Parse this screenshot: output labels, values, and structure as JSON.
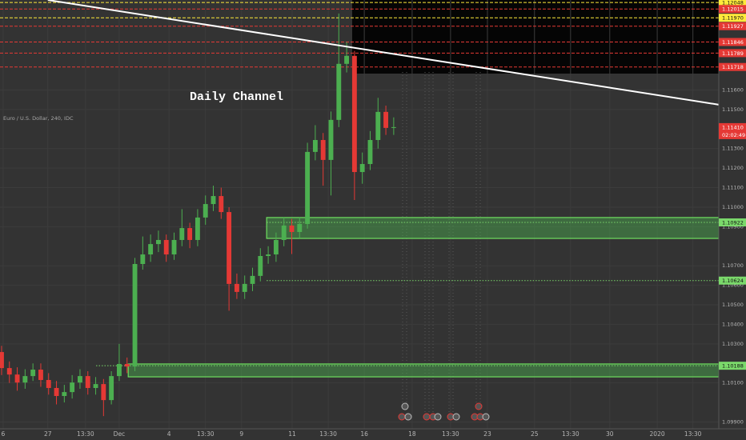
{
  "chart_data": {
    "type": "candlestick",
    "title": "Daily Channel",
    "subtitle": "Euro / U.S. Dollar, 240, IDC",
    "colors": {
      "up": "#4caf50",
      "down": "#e53935",
      "background": "#333333"
    },
    "grid": true,
    "xlim": [
      -0.4,
      182.9
    ],
    "ylim": [
      1.09865,
      1.12061
    ],
    "xticks": [
      {
        "value": 0.4,
        "label": "6"
      },
      {
        "value": 11.8,
        "label": "27"
      },
      {
        "value": 21.4,
        "label": "13:30"
      },
      {
        "value": 30.0,
        "label": "Dec"
      },
      {
        "value": 42.7,
        "label": "4"
      },
      {
        "value": 52.0,
        "label": "13:30"
      },
      {
        "value": 61.2,
        "label": "9"
      },
      {
        "value": 74.1,
        "label": "11"
      },
      {
        "value": 83.3,
        "label": "13:30"
      },
      {
        "value": 92.5,
        "label": "16"
      },
      {
        "value": 104.7,
        "label": "18"
      },
      {
        "value": 114.5,
        "label": "13:30"
      },
      {
        "value": 123.9,
        "label": "23"
      },
      {
        "value": 135.9,
        "label": "25"
      },
      {
        "value": 145.1,
        "label": "13:30"
      },
      {
        "value": 155.1,
        "label": "30"
      },
      {
        "value": 167.2,
        "label": "2020"
      },
      {
        "value": 176.3,
        "label": "13:30"
      }
    ],
    "yticks": [
      {
        "value": 1.116,
        "label": "1.11600"
      },
      {
        "value": 1.115,
        "label": "1.11500"
      },
      {
        "value": 1.113,
        "label": "1.11300"
      },
      {
        "value": 1.112,
        "label": "1.11200"
      },
      {
        "value": 1.111,
        "label": "1.11100"
      },
      {
        "value": 1.11,
        "label": "1.11000"
      },
      {
        "value": 1.109,
        "label": "1.10900"
      },
      {
        "value": 1.107,
        "label": "1.10700"
      },
      {
        "value": 1.106,
        "label": "1.10600"
      },
      {
        "value": 1.105,
        "label": "1.10500"
      },
      {
        "value": 1.104,
        "label": "1.10400"
      },
      {
        "value": 1.103,
        "label": "1.10300"
      },
      {
        "value": 1.101,
        "label": "1.10100"
      },
      {
        "value": 1.099,
        "label": "1.09900"
      }
    ],
    "x": [
      0,
      2,
      4,
      6,
      8,
      10,
      12,
      14,
      16,
      18,
      20,
      22,
      24,
      26,
      28,
      30,
      32,
      34,
      36,
      38,
      40,
      42,
      44,
      46,
      48,
      50,
      52,
      54,
      56,
      58,
      60,
      62,
      64,
      66,
      68,
      70,
      72,
      74,
      76,
      78,
      80,
      82,
      84,
      86,
      88,
      90,
      92,
      94,
      96,
      98,
      100
    ],
    "open": [
      1.10258,
      1.10176,
      1.10143,
      1.10102,
      1.10135,
      1.10168,
      1.10115,
      1.10074,
      1.10033,
      1.10053,
      1.10102,
      1.10135,
      1.10074,
      1.10094,
      1.10012,
      1.10135,
      1.10197,
      1.10184,
      1.10709,
      1.10758,
      1.10811,
      1.10832,
      1.10758,
      1.10832,
      1.10893,
      1.10832,
      1.10947,
      1.11016,
      1.11057,
      1.10975,
      1.10607,
      1.10566,
      1.10607,
      1.10648,
      1.1075,
      1.10758,
      1.10832,
      1.10906,
      1.10873,
      1.10914,
      1.11283,
      1.11344,
      1.11242,
      1.11447,
      1.11734,
      1.11775,
      1.1118,
      1.11221,
      1.11344,
      1.11488,
      1.11406
    ],
    "high": [
      1.1029,
      1.1021,
      1.1018,
      1.1017,
      1.102,
      1.102,
      1.1015,
      1.1011,
      1.1009,
      1.1014,
      1.1017,
      1.1016,
      1.1013,
      1.1012,
      1.1016,
      1.103,
      1.1023,
      1.1074,
      1.1085,
      1.1086,
      1.1088,
      1.1086,
      1.1087,
      1.1099,
      1.1092,
      1.1099,
      1.1106,
      1.1111,
      1.111,
      1.11,
      1.1066,
      1.1065,
      1.1069,
      1.1079,
      1.108,
      1.1087,
      1.1095,
      1.1094,
      1.1095,
      1.1133,
      1.1142,
      1.1138,
      1.1149,
      1.11992,
      1.11846,
      1.118,
      1.1128,
      1.1139,
      1.1156,
      1.1152,
      1.1146
    ],
    "low": [
      1.1014,
      1.101,
      1.1006,
      1.1007,
      1.1011,
      1.1008,
      1.1004,
      1.0999,
      1.1,
      1.1002,
      1.1007,
      1.1004,
      1.1004,
      1.0993,
      1.0999,
      1.1011,
      1.1015,
      1.1016,
      1.1068,
      1.1072,
      1.1077,
      1.1072,
      1.1073,
      1.108,
      1.1079,
      1.108,
      1.1091,
      1.1098,
      1.1094,
      1.1047,
      1.1053,
      1.1053,
      1.1057,
      1.1062,
      1.1071,
      1.1072,
      1.108,
      1.1076,
      1.1084,
      1.1089,
      1.1124,
      1.1111,
      1.1106,
      1.1141,
      1.1169,
      1.11037,
      1.1112,
      1.1119,
      1.113,
      1.1137,
      1.1137
    ],
    "close": [
      1.10176,
      1.10143,
      1.10102,
      1.10135,
      1.10168,
      1.10115,
      1.10074,
      1.10033,
      1.10053,
      1.10102,
      1.10135,
      1.10074,
      1.10094,
      1.10012,
      1.10135,
      1.10197,
      1.10184,
      1.10709,
      1.10758,
      1.10811,
      1.10832,
      1.10758,
      1.10832,
      1.10893,
      1.10832,
      1.10947,
      1.11016,
      1.11057,
      1.10975,
      1.10607,
      1.10566,
      1.10607,
      1.10648,
      1.1075,
      1.10758,
      1.10832,
      1.10906,
      1.10873,
      1.10914,
      1.11283,
      1.11344,
      1.11242,
      1.11447,
      1.11734,
      1.11775,
      1.1118,
      1.11221,
      1.11344,
      1.11488,
      1.11406,
      1.1141
    ],
    "zones": [
      {
        "x0": 67.6,
        "y0": 1.1084,
        "y1": 1.10947
      },
      {
        "x0": 32.3,
        "y0": 1.10131,
        "y1": 1.10197
      }
    ],
    "levels": [
      {
        "value": 1.12048,
        "label": "1.12048",
        "color": "#ffeb3b",
        "style": "dashed",
        "x0": -0.4
      },
      {
        "value": 1.12015,
        "label": "1.12015",
        "color": "#e53935",
        "style": "dashed",
        "x0": -0.4
      },
      {
        "value": 1.1197,
        "label": "1.11970",
        "color": "#ffeb3b",
        "style": "dashed",
        "x0": -0.4
      },
      {
        "value": 1.11927,
        "label": "1.11927",
        "color": "#e53935",
        "style": "dashed",
        "x0": -0.4
      },
      {
        "value": 1.11846,
        "label": "1.11846",
        "color": "#e53935",
        "style": "dashed",
        "x0": -0.4
      },
      {
        "value": 1.11789,
        "label": "1.11789",
        "color": "#e53935",
        "style": "dashed",
        "x0": -0.4
      },
      {
        "value": 1.11718,
        "label": "1.11718",
        "color": "#e53935",
        "style": "dashed",
        "x0": -0.4
      },
      {
        "value": 1.10922,
        "label": "1.10922",
        "color": "#7bd96b",
        "style": "dotted",
        "x0": 67.6
      },
      {
        "value": 1.10624,
        "label": "1.10624",
        "color": "#7bd96b",
        "style": "dotted",
        "x0": 67.6
      },
      {
        "value": 1.10188,
        "label": "1.10188",
        "color": "#7bd96b",
        "style": "dotted",
        "x0": 24.1
      }
    ],
    "last_price": {
      "value": 1.1141,
      "label": "1.11410",
      "time": "02:02:49",
      "color": "#e53935"
    },
    "trendline": {
      "x": [
        11.8,
        182.9
      ],
      "y": [
        1.12061,
        1.11525
      ],
      "color": "#ffffff"
    }
  }
}
